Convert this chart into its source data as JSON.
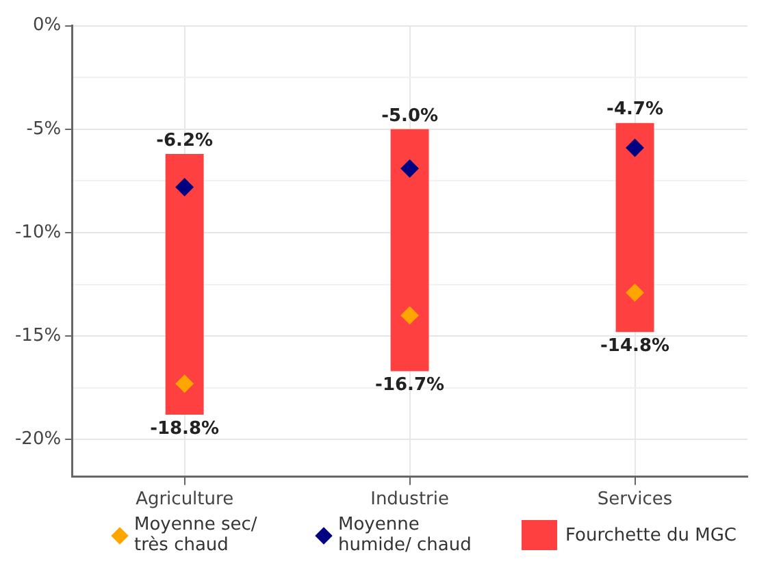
{
  "chart_data": {
    "type": "bar",
    "categories": [
      "Agriculture",
      "Industrie",
      "Services"
    ],
    "series": [
      {
        "name": "Moyenne sec/ très chaud",
        "type": "scatter",
        "color": "#ffa500",
        "x": [
          "Agriculture",
          "Industrie",
          "Services"
        ],
        "values": [
          -17.3,
          -14.0,
          -12.9
        ]
      },
      {
        "name": "Moyenne humide/ chaud",
        "type": "scatter",
        "color": "#000080",
        "x": [
          "Agriculture",
          "Industrie",
          "Services"
        ],
        "values": [
          -7.8,
          -6.9,
          -5.9
        ]
      },
      {
        "name": "Fourchette du MGC",
        "type": "bar",
        "color": "#ff4040",
        "base": [
          -6.2,
          -5.0,
          -4.7
        ],
        "values": [
          -12.6,
          -11.7,
          -10.1
        ]
      }
    ],
    "ylim": [
      -21.8,
      0
    ],
    "yticks": [
      {
        "value": -20,
        "label": "-20%"
      },
      {
        "value": -17.5,
        "label": null
      },
      {
        "value": -15,
        "label": "-15%"
      },
      {
        "value": -12.5,
        "label": null
      },
      {
        "value": -10,
        "label": "-10%"
      },
      {
        "value": -7.5,
        "label": null
      },
      {
        "value": -5,
        "label": "-5%"
      },
      {
        "value": -2.5,
        "label": null
      },
      {
        "value": 0,
        "label": "0%"
      }
    ],
    "grid": true,
    "legend": "bottom",
    "marker": "diamond",
    "annotations": [
      {
        "text": "-6.2%",
        "x": "Agriculture",
        "y": -6.2
      },
      {
        "text": "-18.8%",
        "x": "Agriculture",
        "y": -18.8
      },
      {
        "text": "-5.0%",
        "x": "Industrie",
        "y": -5.0
      },
      {
        "text": "-16.7%",
        "x": "Industrie",
        "y": -16.7
      },
      {
        "text": "-4.7%",
        "x": "Services",
        "y": -4.7
      },
      {
        "text": "-14.8%",
        "x": "Services",
        "y": -14.8
      }
    ]
  }
}
